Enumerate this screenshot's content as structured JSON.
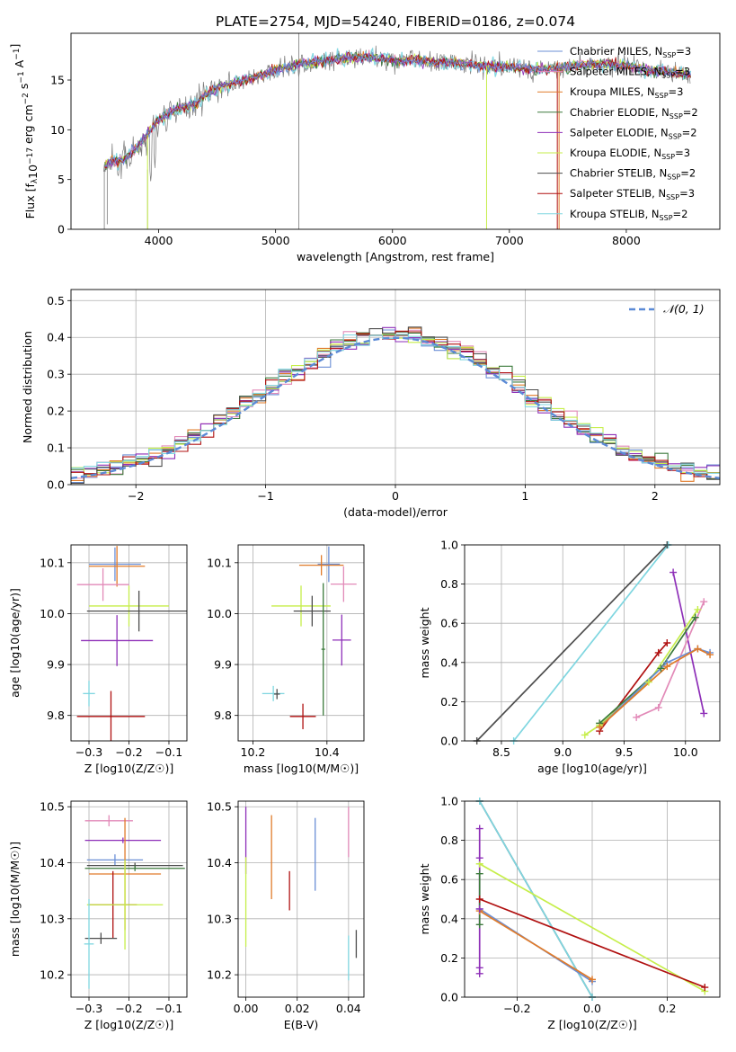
{
  "title": "PLATE=2754, MJD=54240, FIBERID=0186, z=0.074",
  "colors": {
    "chab_miles": "#6b8fd6",
    "salp_miles": "#e28ab8",
    "krou_miles": "#e07b2a",
    "chab_elodie": "#3b7a3b",
    "salp_elodie": "#8e2fb8",
    "krou_elodie": "#c6ee4a",
    "chab_stelib": "#4d4d4d",
    "salp_stelib": "#b01010",
    "krou_stelib": "#7fd6e0",
    "dashed": "#5b8ad6"
  },
  "chart_data": [
    {
      "id": "spectrum",
      "type": "line",
      "xlabel": "wavelength [Angstrom, rest frame]",
      "ylabel": "Flux [f_λ10^-17 erg cm^-2 s^-1 A^-1]",
      "xlim": [
        3250,
        8800
      ],
      "ylim": [
        0,
        19.7
      ],
      "xticks": [
        4000,
        5000,
        6000,
        7000,
        8000
      ],
      "yticks": [
        0,
        5,
        10,
        15
      ],
      "continuum": {
        "x": [
          3530,
          3600,
          3700,
          3800,
          3900,
          4000,
          4100,
          4200,
          4300,
          4400,
          4500,
          4600,
          4800,
          5000,
          5200,
          5400,
          5600,
          5800,
          6000,
          6200,
          6400,
          6600,
          6800,
          7000,
          7200,
          7400,
          7600,
          7800,
          8000,
          8200,
          8400,
          8550
        ],
        "y": [
          6.5,
          6.8,
          7.0,
          8.0,
          9.5,
          11.0,
          11.8,
          12.2,
          12.5,
          13.5,
          14.2,
          14.6,
          15.2,
          16.0,
          16.6,
          16.8,
          17.2,
          17.3,
          17.0,
          17.0,
          16.8,
          16.7,
          16.4,
          16.3,
          16.1,
          16.2,
          16.5,
          16.7,
          16.4,
          16.0,
          15.8,
          15.5
        ]
      },
      "legend": [
        {
          "key": "chab_miles",
          "label": "Chabrier MILES, N",
          "sub": "SSP",
          "n": "=3"
        },
        {
          "key": "salp_miles",
          "label": "Salpeter MILES, N",
          "sub": "SSP",
          "n": "=3"
        },
        {
          "key": "krou_miles",
          "label": "Kroupa MILES, N",
          "sub": "SSP",
          "n": "=3"
        },
        {
          "key": "chab_elodie",
          "label": "Chabrier ELODIE, N",
          "sub": "SSP",
          "n": "=2"
        },
        {
          "key": "salp_elodie",
          "label": "Salpeter ELODIE, N",
          "sub": "SSP",
          "n": "=2"
        },
        {
          "key": "krou_elodie",
          "label": "Kroupa ELODIE, N",
          "sub": "SSP",
          "n": "=3"
        },
        {
          "key": "chab_stelib",
          "label": "Chabrier STELIB, N",
          "sub": "SSP",
          "n": "=2"
        },
        {
          "key": "salp_stelib",
          "label": "Salpeter STELIB, N",
          "sub": "SSP",
          "n": "=3"
        },
        {
          "key": "krou_stelib",
          "label": "Kroupa STELIB, N",
          "sub": "SSP",
          "n": "=2"
        }
      ]
    },
    {
      "id": "residuals",
      "type": "step",
      "xlabel": "(data-model)/error",
      "ylabel": "Normed distribution",
      "xlim": [
        -2.5,
        2.5
      ],
      "ylim": [
        0,
        0.53
      ],
      "xticks": [
        -2,
        -1,
        0,
        1,
        2
      ],
      "yticks": [
        0.0,
        0.1,
        0.2,
        0.3,
        0.4,
        0.5
      ],
      "legend_label": "𝒩(0, 1)",
      "bin_width": 0.1,
      "bin_start": -2.5
    },
    {
      "id": "age_vs_Z",
      "type": "errorbar",
      "xlabel": "Z [log10(Z/Z☉)]",
      "ylabel": "age [log10(age/yr)]",
      "xlim": [
        -0.345,
        -0.055
      ],
      "ylim": [
        9.75,
        10.135
      ],
      "xticks": [
        -0.3,
        -0.2,
        -0.1
      ],
      "yticks": [
        9.8,
        9.9,
        10.0,
        10.1
      ],
      "points": [
        {
          "key": "chab_miles",
          "x": -0.235,
          "xerr": 0.065,
          "y": 10.097,
          "yerr": 0.033
        },
        {
          "key": "krou_miles",
          "x": -0.23,
          "xerr": 0.07,
          "y": 10.093,
          "yerr": 0.04
        },
        {
          "key": "salp_miles",
          "x": -0.265,
          "xerr": 0.065,
          "y": 10.057,
          "yerr": 0.032
        },
        {
          "key": "krou_elodie",
          "x": -0.2,
          "xerr": 0.1,
          "y": 10.015,
          "yerr": 0.04
        },
        {
          "key": "chab_stelib",
          "x": -0.175,
          "xerr": 0.13,
          "y": 10.005,
          "yerr": 0.04
        },
        {
          "key": "salp_elodie",
          "x": -0.23,
          "xerr": 0.09,
          "y": 9.947,
          "yerr": 0.05
        },
        {
          "key": "krou_stelib",
          "x": -0.3,
          "xerr": 0.015,
          "y": 9.843,
          "yerr": 0.025
        },
        {
          "key": "salp_stelib",
          "x": -0.245,
          "xerr": 0.085,
          "y": 9.798,
          "yerr": 0.05
        }
      ]
    },
    {
      "id": "age_vs_mass",
      "type": "errorbar",
      "xlabel": "mass [log10(M/M☉)]",
      "ylabel": "",
      "xlim": [
        10.16,
        10.5
      ],
      "ylim": [
        9.75,
        10.135
      ],
      "xticks": [
        10.2,
        10.4
      ],
      "yticks": [
        9.8,
        9.9,
        10.0,
        10.1
      ],
      "points": [
        {
          "key": "chab_miles",
          "x": 10.405,
          "xerr": 0.03,
          "y": 10.097,
          "yerr": 0.035
        },
        {
          "key": "krou_miles",
          "x": 10.385,
          "xerr": 0.06,
          "y": 10.095,
          "yerr": 0.02
        },
        {
          "key": "salp_miles",
          "x": 10.445,
          "xerr": 0.035,
          "y": 10.058,
          "yerr": 0.035
        },
        {
          "key": "krou_elodie",
          "x": 10.33,
          "xerr": 0.08,
          "y": 10.015,
          "yerr": 0.04
        },
        {
          "key": "chab_stelib",
          "x": 10.36,
          "xerr": 0.05,
          "y": 10.005,
          "yerr": 0.03
        },
        {
          "key": "salp_elodie",
          "x": 10.44,
          "xerr": 0.025,
          "y": 9.948,
          "yerr": 0.05
        },
        {
          "key": "chab_elodie",
          "x": 10.39,
          "xerr": 0.005,
          "y": 9.93,
          "yerr": 0.13
        },
        {
          "key": "krou_stelib",
          "x": 10.255,
          "xerr": 0.03,
          "y": 9.843,
          "yerr": 0.015
        },
        {
          "key": "chab_stelib",
          "x": 10.265,
          "xerr": 0.008,
          "y": 9.842,
          "yerr": 0.01
        },
        {
          "key": "salp_stelib",
          "x": 10.335,
          "xerr": 0.035,
          "y": 9.798,
          "yerr": 0.025
        }
      ]
    },
    {
      "id": "mw_vs_age",
      "type": "line",
      "xlabel": "age [log10(age/yr)]",
      "ylabel": "mass weight",
      "xlim": [
        8.2,
        10.28
      ],
      "ylim": [
        0,
        1.0
      ],
      "xticks": [
        8.5,
        9.0,
        9.5,
        10.0
      ],
      "yticks": [
        0.0,
        0.2,
        0.4,
        0.6,
        0.8,
        1.0
      ],
      "series": [
        {
          "key": "chab_stelib",
          "x": [
            8.3,
            9.85
          ],
          "y": [
            0.0,
            1.0
          ]
        },
        {
          "key": "krou_stelib",
          "x": [
            8.6,
            9.86
          ],
          "y": [
            0.0,
            1.0
          ]
        },
        {
          "key": "salp_elodie",
          "x": [
            9.9,
            10.15
          ],
          "y": [
            0.86,
            0.14
          ]
        },
        {
          "key": "salp_miles",
          "x": [
            9.6,
            9.78,
            10.15
          ],
          "y": [
            0.12,
            0.17,
            0.71
          ]
        },
        {
          "key": "salp_stelib",
          "x": [
            9.3,
            9.78,
            9.85
          ],
          "y": [
            0.05,
            0.45,
            0.5
          ]
        },
        {
          "key": "krou_elodie",
          "x": [
            9.18,
            9.3,
            9.7,
            10.1
          ],
          "y": [
            0.03,
            0.08,
            0.3,
            0.67
          ]
        },
        {
          "key": "chab_elodie",
          "x": [
            9.3,
            9.8,
            10.08
          ],
          "y": [
            0.09,
            0.37,
            0.63
          ]
        },
        {
          "key": "chab_miles",
          "x": [
            9.3,
            9.85,
            10.1,
            10.2
          ],
          "y": [
            0.07,
            0.4,
            0.47,
            0.45
          ]
        },
        {
          "key": "krou_miles",
          "x": [
            9.3,
            9.85,
            10.1,
            10.2
          ],
          "y": [
            0.07,
            0.38,
            0.47,
            0.44
          ]
        }
      ]
    },
    {
      "id": "mass_vs_Z",
      "type": "errorbar",
      "xlabel": "Z [log10(Z/Z☉)]",
      "ylabel": "mass [log10(M/M☉)]",
      "xlim": [
        -0.345,
        -0.055
      ],
      "ylim": [
        10.16,
        10.51
      ],
      "xticks": [
        -0.3,
        -0.2,
        -0.1
      ],
      "yticks": [
        10.2,
        10.3,
        10.4,
        10.5
      ],
      "points": [
        {
          "key": "salp_miles",
          "x": -0.25,
          "xerr": 0.06,
          "y": 10.475,
          "yerr": 0.01
        },
        {
          "key": "salp_elodie",
          "x": -0.215,
          "xerr": 0.095,
          "y": 10.44,
          "yerr": 0.005
        },
        {
          "key": "chab_miles",
          "x": -0.235,
          "xerr": 0.07,
          "y": 10.405,
          "yerr": 0.01
        },
        {
          "key": "chab_stelib",
          "x": -0.185,
          "xerr": 0.12,
          "y": 10.395,
          "yerr": 0.005
        },
        {
          "key": "chab_elodie",
          "x": -0.185,
          "xerr": 0.125,
          "y": 10.39,
          "yerr": 0.005
        },
        {
          "key": "krou_miles",
          "x": -0.21,
          "xerr": 0.09,
          "y": 10.38,
          "yerr": 0.1
        },
        {
          "key": "salp_stelib",
          "x": -0.24,
          "xerr": 0.06,
          "y": 10.325,
          "yerr": 0.06
        },
        {
          "key": "krou_elodie",
          "x": -0.21,
          "xerr": 0.095,
          "y": 10.325,
          "yerr": 0.08
        },
        {
          "key": "chab_stelib",
          "x": -0.27,
          "xerr": 0.04,
          "y": 10.265,
          "yerr": 0.01
        },
        {
          "key": "krou_stelib",
          "x": -0.3,
          "xerr": 0.012,
          "y": 10.255,
          "yerr": 0.08
        }
      ]
    },
    {
      "id": "mass_vs_ebv",
      "type": "errorbar",
      "xlabel": "E(B-V)",
      "ylabel": "",
      "xlim": [
        -0.003,
        0.046
      ],
      "ylim": [
        10.16,
        10.51
      ],
      "xticks": [
        0.0,
        0.02,
        0.04
      ],
      "yticks": [
        10.2,
        10.3,
        10.4,
        10.5
      ],
      "points": [
        {
          "key": "salp_elodie",
          "x": 0.0,
          "y": 10.44,
          "yerr": 0.06
        },
        {
          "key": "krou_elodie",
          "x": 0.0,
          "y": 10.33,
          "yerr": 0.08
        },
        {
          "key": "krou_miles",
          "x": 0.01,
          "y": 10.41,
          "yerr": 0.075
        },
        {
          "key": "salp_stelib",
          "x": 0.017,
          "y": 10.35,
          "yerr": 0.035
        },
        {
          "key": "chab_miles",
          "x": 0.027,
          "y": 10.415,
          "yerr": 0.065
        },
        {
          "key": "salp_miles",
          "x": 0.04,
          "y": 10.455,
          "yerr": 0.045
        },
        {
          "key": "krou_stelib",
          "x": 0.04,
          "y": 10.23,
          "yerr": 0.04
        },
        {
          "key": "chab_stelib",
          "x": 0.043,
          "y": 10.255,
          "yerr": 0.025
        }
      ]
    },
    {
      "id": "mw_vs_Z",
      "type": "line",
      "xlabel": "Z [log10(Z/Z☉)]",
      "ylabel": "mass weight",
      "xlim": [
        -0.34,
        0.34
      ],
      "ylim": [
        0,
        1.0
      ],
      "xticks": [
        -0.2,
        0.0,
        0.2
      ],
      "yticks": [
        0.0,
        0.2,
        0.4,
        0.6,
        0.8,
        1.0
      ],
      "series": [
        {
          "key": "chab_stelib",
          "x": [
            -0.3,
            0.0
          ],
          "y": [
            1.0,
            0.0
          ]
        },
        {
          "key": "krou_stelib",
          "x": [
            -0.3,
            0.0
          ],
          "y": [
            1.0,
            0.0
          ]
        },
        {
          "key": "krou_elodie",
          "x": [
            -0.3,
            0.3
          ],
          "y": [
            0.68,
            0.03
          ]
        },
        {
          "key": "salp_stelib",
          "x": [
            -0.3,
            0.3
          ],
          "y": [
            0.5,
            0.05
          ]
        },
        {
          "key": "chab_miles",
          "x": [
            -0.3,
            0.0
          ],
          "y": [
            0.45,
            0.08
          ]
        },
        {
          "key": "krou_miles",
          "x": [
            -0.3,
            0.0
          ],
          "y": [
            0.44,
            0.09
          ]
        },
        {
          "key": "salp_elodie",
          "x": [
            -0.3,
            -0.3,
            -0.3,
            -0.3,
            -0.3
          ],
          "y": [
            0.86,
            0.71,
            0.45,
            0.15,
            0.12
          ]
        },
        {
          "key": "chab_elodie",
          "x": [
            -0.3,
            -0.3
          ],
          "y": [
            0.63,
            0.37
          ]
        }
      ]
    }
  ]
}
